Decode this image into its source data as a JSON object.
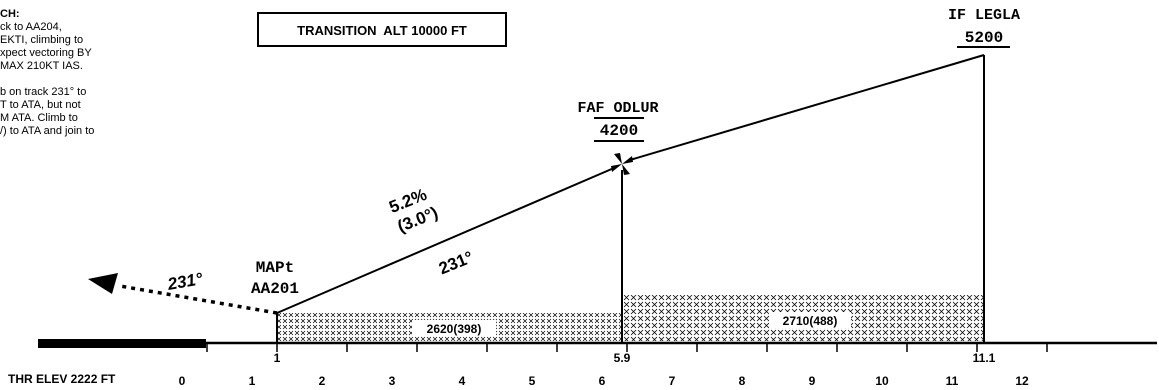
{
  "notes": {
    "heading": "CH:",
    "lines_a": [
      "ck to AA204,",
      "EKTI, climbing to",
      "xpect vectoring BY",
      "MAX 210KT IAS."
    ],
    "lines_b": [
      "b on track 231° to",
      "T to ATA, but not",
      "M ATA. Climb to",
      "/) to ATA and join to"
    ]
  },
  "transition_box": "TRANSITION  ALT 10000 FT",
  "fixes": {
    "if": {
      "name": "IF LEGLA",
      "alt": "5200"
    },
    "faf": {
      "name": "FAF ODLUR",
      "alt": "4200"
    },
    "mapt": {
      "name": "MAPt",
      "id": "AA201"
    }
  },
  "path_labels": {
    "gradient": "5.2%",
    "angle": "(3.0°)",
    "track": "231°",
    "missed_track": "231°"
  },
  "segments": [
    {
      "label": "2620(398)"
    },
    {
      "label": "2710(488)"
    }
  ],
  "distance_marks": [
    "1",
    "5.9",
    "11.1"
  ],
  "scale_labels": [
    "0",
    "1",
    "2",
    "3",
    "4",
    "5",
    "6",
    "7",
    "8",
    "9",
    "10",
    "11",
    "12"
  ],
  "threshold_label": "THR ELEV 2222 FT",
  "colors": {
    "ink": "#000000",
    "background": "#ffffff"
  }
}
